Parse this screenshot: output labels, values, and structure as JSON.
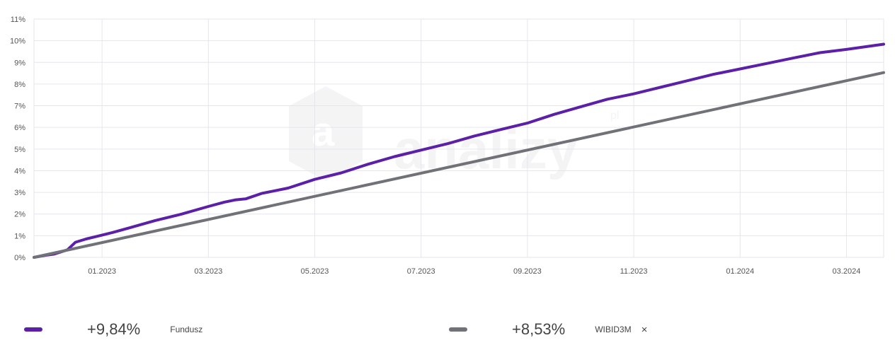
{
  "chart_data": {
    "type": "line",
    "y_ticks": [
      "0%",
      "1%",
      "2%",
      "3%",
      "4%",
      "5%",
      "6%",
      "7%",
      "8%",
      "9%",
      "10%",
      "11%"
    ],
    "ylim": [
      0,
      11
    ],
    "x_ticks": [
      "01.2023",
      "03.2023",
      "05.2023",
      "07.2023",
      "09.2023",
      "11.2023",
      "01.2024",
      "03.2024"
    ],
    "x_tick_positions": [
      1.0,
      3.0,
      5.0,
      7.0,
      9.0,
      11.0,
      13.0,
      15.0
    ],
    "xlim": [
      -0.28,
      15.7
    ],
    "x_unit": "months since 01.2023 at 0",
    "grid": true,
    "watermark": "analizy.pl",
    "series": [
      {
        "name": "Fundusz",
        "color": "#5b1fa8",
        "points": [
          [
            -0.28,
            0.0
          ],
          [
            -0.05,
            0.1
          ],
          [
            0.1,
            0.15
          ],
          [
            0.35,
            0.35
          ],
          [
            0.5,
            0.7
          ],
          [
            0.7,
            0.85
          ],
          [
            0.95,
            1.0
          ],
          [
            1.2,
            1.15
          ],
          [
            1.5,
            1.35
          ],
          [
            2.0,
            1.7
          ],
          [
            2.5,
            2.0
          ],
          [
            3.0,
            2.35
          ],
          [
            3.3,
            2.55
          ],
          [
            3.5,
            2.65
          ],
          [
            3.7,
            2.7
          ],
          [
            4.0,
            2.95
          ],
          [
            4.5,
            3.2
          ],
          [
            5.0,
            3.6
          ],
          [
            5.5,
            3.9
          ],
          [
            6.0,
            4.3
          ],
          [
            6.5,
            4.65
          ],
          [
            7.0,
            4.95
          ],
          [
            7.5,
            5.25
          ],
          [
            8.0,
            5.6
          ],
          [
            8.5,
            5.9
          ],
          [
            9.0,
            6.2
          ],
          [
            9.5,
            6.6
          ],
          [
            10.0,
            6.95
          ],
          [
            10.5,
            7.3
          ],
          [
            11.0,
            7.55
          ],
          [
            11.5,
            7.85
          ],
          [
            12.0,
            8.15
          ],
          [
            12.5,
            8.45
          ],
          [
            13.0,
            8.7
          ],
          [
            13.5,
            8.95
          ],
          [
            14.0,
            9.2
          ],
          [
            14.5,
            9.45
          ],
          [
            15.0,
            9.6
          ],
          [
            15.7,
            9.84
          ]
        ]
      },
      {
        "name": "WIBID3M",
        "color": "#707278",
        "points": [
          [
            -0.28,
            0.0
          ],
          [
            15.7,
            8.53
          ]
        ]
      }
    ]
  },
  "legend": {
    "fund": {
      "value": "+9,84%",
      "name": "Fundusz",
      "color": "#5b1fa8"
    },
    "benchmark": {
      "value": "+8,53%",
      "name": "WIBID3M",
      "color": "#707278",
      "remove_icon": "×"
    }
  }
}
